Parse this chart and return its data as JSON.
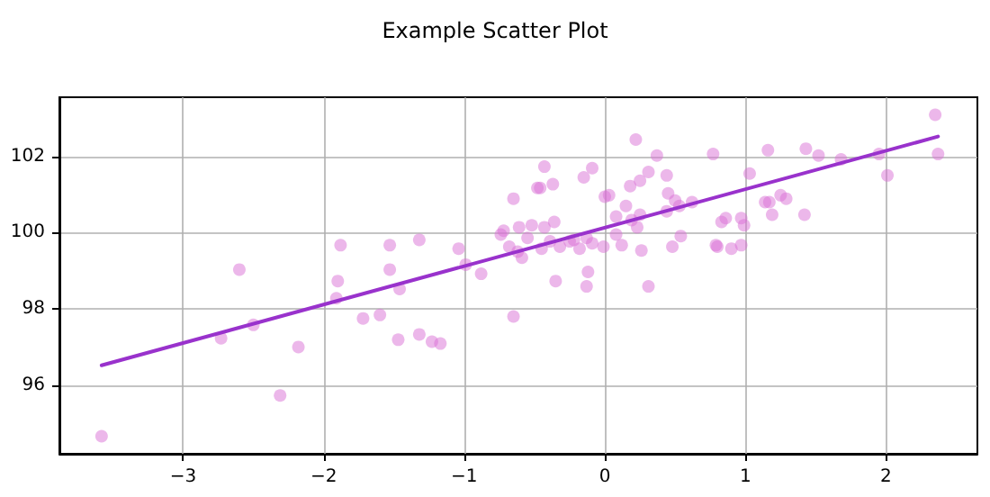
{
  "chart_data": {
    "type": "scatter",
    "title": "Example Scatter Plot",
    "xlim": [
      -3.88,
      2.65
    ],
    "ylim": [
      94.2,
      103.55
    ],
    "xticks": [
      -3,
      -2,
      -1,
      0,
      1,
      2
    ],
    "yticks": [
      96,
      98,
      100,
      102
    ],
    "grid": true,
    "marker": "circle",
    "series": [
      {
        "color": "#da70d6",
        "x": [
          -3.58,
          -2.73,
          -2.6,
          -2.5,
          -2.31,
          -2.18,
          -1.91,
          -1.9,
          -1.88,
          -1.72,
          -1.6,
          -1.53,
          -1.53,
          -1.47,
          -1.46,
          -1.32,
          -1.32,
          -1.23,
          -1.17,
          -1.04,
          -0.99,
          -0.88,
          -0.74,
          -0.72,
          -0.68,
          -0.65,
          -0.65,
          -0.62,
          -0.59,
          -0.61,
          -0.55,
          -0.52,
          -0.48,
          -0.46,
          -0.45,
          -0.43,
          -0.43,
          -0.39,
          -0.37,
          -0.36,
          -0.35,
          -0.32,
          -0.25,
          -0.22,
          -0.18,
          -0.15,
          -0.13,
          -0.12,
          -0.13,
          -0.09,
          -0.09,
          -0.01,
          0.0,
          0.03,
          0.08,
          0.08,
          0.12,
          0.15,
          0.18,
          0.19,
          0.22,
          0.23,
          0.25,
          0.25,
          0.26,
          0.31,
          0.31,
          0.37,
          0.44,
          0.45,
          0.44,
          0.48,
          0.5,
          0.53,
          0.54,
          0.62,
          0.77,
          0.79,
          0.8,
          0.83,
          0.86,
          0.9,
          0.97,
          0.97,
          0.99,
          1.03,
          1.14,
          1.16,
          1.17,
          1.19,
          1.25,
          1.29,
          1.42,
          1.43,
          1.52,
          1.68,
          1.95,
          2.01,
          2.35,
          2.37
        ],
        "values": [
          94.66,
          97.23,
          99.03,
          97.58,
          95.73,
          97.0,
          98.28,
          98.73,
          99.67,
          97.75,
          97.84,
          99.67,
          99.03,
          97.19,
          98.52,
          99.81,
          97.33,
          97.14,
          97.09,
          99.58,
          99.16,
          98.92,
          99.95,
          100.05,
          99.63,
          100.89,
          97.8,
          99.5,
          99.34,
          100.14,
          99.86,
          100.19,
          101.17,
          101.17,
          99.58,
          100.14,
          101.73,
          99.77,
          101.27,
          100.28,
          98.73,
          99.63,
          99.77,
          99.81,
          99.58,
          101.45,
          99.86,
          98.97,
          98.59,
          101.69,
          99.72,
          99.63,
          100.94,
          100.98,
          100.42,
          99.95,
          99.67,
          100.7,
          101.22,
          100.33,
          102.44,
          100.14,
          101.36,
          100.47,
          99.53,
          101.59,
          98.59,
          102.02,
          101.5,
          101.03,
          100.56,
          99.63,
          100.84,
          100.7,
          99.91,
          100.8,
          102.06,
          99.67,
          99.63,
          100.28,
          100.38,
          99.58,
          100.38,
          99.67,
          100.19,
          101.55,
          100.8,
          102.16,
          100.8,
          100.47,
          100.98,
          100.89,
          100.47,
          102.2,
          102.02,
          101.92,
          102.06,
          101.5,
          103.09,
          102.06
        ]
      },
      {
        "type": "line",
        "color": "#9932cc",
        "marker": "none",
        "line_style": "solid",
        "x": [
          -3.58,
          2.37
        ],
        "values": [
          96.52,
          102.52
        ]
      }
    ]
  }
}
